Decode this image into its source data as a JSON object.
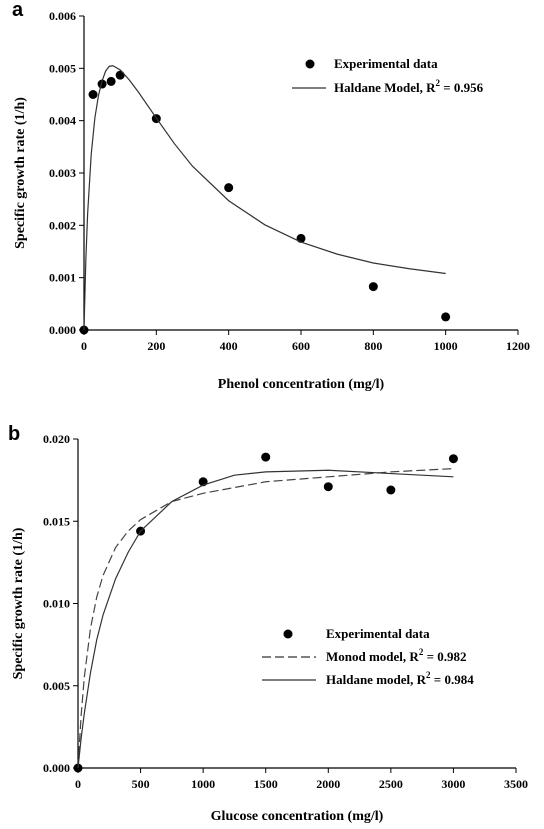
{
  "chart_data": [
    {
      "panel_label": "a",
      "type": "scatter",
      "xlabel": "Phenol concentration (mg/l)",
      "ylabel": "Specific growth rate (1/h)",
      "xlim": [
        0,
        1200
      ],
      "ylim": [
        0,
        0.006
      ],
      "xticks": [
        0,
        200,
        400,
        600,
        800,
        1000,
        1200
      ],
      "yticks": [
        0.0,
        0.001,
        0.002,
        0.003,
        0.004,
        0.005,
        0.006
      ],
      "ytick_labels": [
        "0.000",
        "0.001",
        "0.002",
        "0.003",
        "0.004",
        "0.005",
        "0.006"
      ],
      "grid": false,
      "legend_position": "top-right",
      "series": [
        {
          "name": "Experimental data",
          "kind": "points",
          "x": [
            0,
            25,
            50,
            75,
            100,
            200,
            400,
            600,
            800,
            1000
          ],
          "y": [
            0.0,
            0.0045,
            0.0047,
            0.00475,
            0.00487,
            0.00404,
            0.00272,
            0.00175,
            0.00083,
            0.00025
          ]
        },
        {
          "name": "Haldane Model, R² = 0.956",
          "name_main": "Haldane Model, R",
          "name_sup": "2",
          "name_tail": " = 0.956",
          "kind": "line",
          "style": "solid",
          "x": [
            0,
            5,
            10,
            20,
            30,
            40,
            50,
            60,
            70,
            80,
            100,
            125,
            150,
            200,
            250,
            300,
            400,
            500,
            600,
            700,
            800,
            900,
            1000
          ],
          "y": [
            0.0,
            0.00132,
            0.00222,
            0.00336,
            0.00405,
            0.00448,
            0.00476,
            0.00495,
            0.00504,
            0.00505,
            0.00497,
            0.00478,
            0.00455,
            0.00405,
            0.00356,
            0.00313,
            0.00247,
            0.00201,
            0.00168,
            0.00145,
            0.00128,
            0.00117,
            0.00108
          ]
        }
      ]
    },
    {
      "panel_label": "b",
      "type": "scatter",
      "xlabel": "Glucose concentration (mg/l)",
      "ylabel": "Specific growth rate (1/h)",
      "xlim": [
        0,
        3500
      ],
      "ylim": [
        0,
        0.02
      ],
      "xticks": [
        0,
        500,
        1000,
        1500,
        2000,
        2500,
        3000,
        3500
      ],
      "yticks": [
        0.0,
        0.005,
        0.01,
        0.015,
        0.02
      ],
      "ytick_labels": [
        "0.000",
        "0.005",
        "0.010",
        "0.015",
        "0.020"
      ],
      "grid": false,
      "legend_position": "bottom-right",
      "series": [
        {
          "name": "Experimental data",
          "kind": "points",
          "x": [
            0,
            500,
            1000,
            1500,
            2000,
            2500,
            3000
          ],
          "y": [
            0.0,
            0.0144,
            0.0174,
            0.0189,
            0.0171,
            0.0169,
            0.0188
          ]
        },
        {
          "name": "Monod model, R² = 0.982",
          "name_main": "Monod model, R",
          "name_sup": "2",
          "name_tail": " = 0.982",
          "kind": "line",
          "style": "dashed",
          "x": [
            0,
            25,
            50,
            100,
            150,
            200,
            300,
            400,
            500,
            750,
            1000,
            1500,
            2000,
            2500,
            3000
          ],
          "y": [
            0.0,
            0.0032,
            0.0055,
            0.0085,
            0.0104,
            0.0117,
            0.0134,
            0.0144,
            0.0151,
            0.0162,
            0.0167,
            0.0174,
            0.0177,
            0.018,
            0.0182
          ]
        },
        {
          "name": "Haldane model, R² = 0.984",
          "name_main": "Haldane model, R",
          "name_sup": "2",
          "name_tail": " = 0.984",
          "kind": "line",
          "style": "solid",
          "x": [
            0,
            25,
            50,
            100,
            150,
            200,
            300,
            400,
            500,
            750,
            1000,
            1250,
            1500,
            2000,
            2500,
            3000
          ],
          "y": [
            0.0,
            0.0018,
            0.0033,
            0.0058,
            0.0078,
            0.0093,
            0.0115,
            0.0131,
            0.0144,
            0.0162,
            0.0172,
            0.0178,
            0.018,
            0.0181,
            0.0179,
            0.0177
          ]
        }
      ]
    }
  ]
}
